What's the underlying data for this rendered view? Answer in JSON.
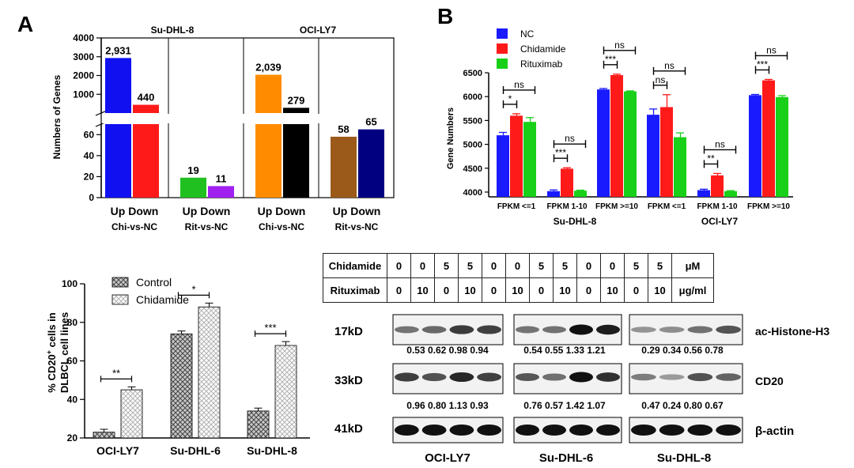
{
  "panel_labels": {
    "a": "A",
    "b": "B"
  },
  "chart_data": [
    {
      "type": "bar",
      "panel": "A",
      "ylabel": "Numbers of Genes",
      "axis_break": {
        "lower": [
          0,
          70
        ],
        "upper": [
          0,
          4000
        ]
      },
      "lower_ticks": [
        "0",
        "20",
        "40",
        "60"
      ],
      "upper_ticks": [
        "1000",
        "2000",
        "3000",
        "4000"
      ],
      "group_titles": [
        "Su-DHL-8",
        "OCI-LY7"
      ],
      "tick_labels": [
        "Up Down",
        "Up Down",
        "Up Down",
        "Up Down"
      ],
      "comparisons": [
        "Chi-vs-NC",
        "Rit-vs-NC",
        "Chi-vs-NC",
        "Rit-vs-NC"
      ],
      "bars": [
        {
          "cell": "Su-DHL-8",
          "comparison": "Chi-vs-NC",
          "direction": "Up",
          "value": 2931,
          "label": "2,931",
          "color": "#1010f0"
        },
        {
          "cell": "Su-DHL-8",
          "comparison": "Chi-vs-NC",
          "direction": "Down",
          "value": 440,
          "label": "440",
          "color": "#ff1a1a"
        },
        {
          "cell": "Su-DHL-8",
          "comparison": "Rit-vs-NC",
          "direction": "Up",
          "value": 19,
          "label": "19",
          "color": "#20c020"
        },
        {
          "cell": "Su-DHL-8",
          "comparison": "Rit-vs-NC",
          "direction": "Down",
          "value": 11,
          "label": "11",
          "color": "#a020f0"
        },
        {
          "cell": "OCI-LY7",
          "comparison": "Chi-vs-NC",
          "direction": "Up",
          "value": 2039,
          "label": "2,039",
          "color": "#ff8c00"
        },
        {
          "cell": "OCI-LY7",
          "comparison": "Chi-vs-NC",
          "direction": "Down",
          "value": 279,
          "label": "279",
          "color": "#000000"
        },
        {
          "cell": "OCI-LY7",
          "comparison": "Rit-vs-NC",
          "direction": "Up",
          "value": 58,
          "label": "58",
          "color": "#9b5a1a"
        },
        {
          "cell": "OCI-LY7",
          "comparison": "Rit-vs-NC",
          "direction": "Down",
          "value": 65,
          "label": "65",
          "color": "#000080"
        }
      ]
    },
    {
      "type": "bar",
      "panel": "B",
      "ylabel": "Gene Numbers",
      "ylim": [
        3900,
        6500
      ],
      "yticks": [
        "4000",
        "4500",
        "5000",
        "5500",
        "6000",
        "6500"
      ],
      "categories": [
        "FPKM <=1",
        "FPKM 1-10",
        "FPKM >=10",
        "FPKM <=1",
        "FPKM 1-10",
        "FPKM >=10"
      ],
      "groups": [
        "Su-DHL-8",
        "OCI-LY7"
      ],
      "series": [
        {
          "name": "NC",
          "color": "#1a1aff",
          "values": [
            5190,
            4020,
            6150,
            5620,
            4040,
            6030
          ],
          "errors": [
            60,
            25,
            20,
            120,
            20,
            15
          ]
        },
        {
          "name": "Chidamide",
          "color": "#ff1a1a",
          "values": [
            5600,
            4490,
            6450,
            5780,
            4350,
            6340
          ],
          "errors": [
            40,
            20,
            20,
            260,
            40,
            20
          ]
        },
        {
          "name": "Rituximab",
          "color": "#18d018",
          "values": [
            5470,
            4030,
            6110,
            5150,
            4020,
            5990
          ],
          "errors": [
            90,
            10,
            10,
            90,
            10,
            30
          ]
        }
      ],
      "annotations": [
        {
          "category": 0,
          "pair": "NC-Chidamide",
          "label": "*"
        },
        {
          "category": 0,
          "pair": "NC-Rituximab",
          "label": "ns"
        },
        {
          "category": 1,
          "pair": "NC-Chidamide",
          "label": "***"
        },
        {
          "category": 1,
          "pair": "NC-Rituximab",
          "label": "ns"
        },
        {
          "category": 2,
          "pair": "NC-Chidamide",
          "label": "***"
        },
        {
          "category": 2,
          "pair": "NC-Rituximab",
          "label": "ns"
        },
        {
          "category": 3,
          "pair": "NC-Chidamide",
          "label": "ns"
        },
        {
          "category": 3,
          "pair": "NC-Rituximab",
          "label": "ns"
        },
        {
          "category": 4,
          "pair": "NC-Chidamide",
          "label": "**"
        },
        {
          "category": 4,
          "pair": "NC-Rituximab",
          "label": "ns"
        },
        {
          "category": 5,
          "pair": "NC-Chidamide",
          "label": "***"
        },
        {
          "category": 5,
          "pair": "NC-Rituximab",
          "label": "ns"
        }
      ]
    },
    {
      "type": "bar",
      "panel": "C",
      "ylabel_line1": "% CD20",
      "ylabel_sup": "+",
      "ylabel_rest": " cells in",
      "ylabel_line2": "DLBCL cell lines",
      "ylim": [
        20,
        100
      ],
      "yticks": [
        "20",
        "40",
        "60",
        "80",
        "100"
      ],
      "categories": [
        "OCI-LY7",
        "Su-DHL-6",
        "Su-DHL-8"
      ],
      "series": [
        {
          "name": "Control",
          "values": [
            23,
            74,
            34
          ],
          "errors": [
            1.5,
            1.5,
            1.5
          ]
        },
        {
          "name": "Chidamide",
          "values": [
            45,
            88,
            68
          ],
          "errors": [
            1.5,
            2,
            2
          ]
        }
      ],
      "annotations": [
        "**",
        "*",
        "***"
      ]
    }
  ],
  "western_blot": {
    "table": {
      "chidamide_label": "Chidamide",
      "rituximab_label": "Rituximab",
      "chidamide": [
        "0",
        "0",
        "5",
        "5",
        "0",
        "0",
        "5",
        "5",
        "0",
        "0",
        "5",
        "5"
      ],
      "rituximab": [
        "0",
        "10",
        "0",
        "10",
        "0",
        "10",
        "0",
        "10",
        "0",
        "10",
        "0",
        "10"
      ],
      "unit_chidamide": "μM",
      "unit_rituximab": "μg/ml"
    },
    "rows": [
      {
        "kd": "17kD",
        "protein": "ac-Histone-H3",
        "intensity": [
          0.53,
          0.62,
          0.98,
          0.94,
          0.54,
          0.55,
          1.33,
          1.21,
          0.29,
          0.34,
          0.56,
          0.78
        ]
      },
      {
        "kd": "33kD",
        "protein": "CD20",
        "intensity": [
          0.96,
          0.8,
          1.13,
          0.93,
          0.76,
          0.57,
          1.42,
          1.07,
          0.47,
          0.24,
          0.8,
          0.67
        ]
      },
      {
        "kd": "41kD",
        "protein": "β-actin",
        "intensity": [
          1.0,
          1.0,
          1.0,
          1.0,
          1.0,
          1.0,
          1.0,
          1.0,
          1.0,
          1.0,
          1.0,
          1.0
        ]
      }
    ],
    "ratios_h3": [
      "0.53 0.62 0.98 0.94",
      "0.54 0.55 1.33 1.21",
      "0.29 0.34 0.56 0.78"
    ],
    "ratios_cd20": [
      "0.96 0.80 1.13 0.93",
      "0.76 0.57 1.42 1.07",
      "0.47 0.24 0.80 0.67"
    ],
    "cell_lines": [
      "OCI-LY7",
      "Su-DHL-6",
      "Su-DHL-8"
    ]
  }
}
